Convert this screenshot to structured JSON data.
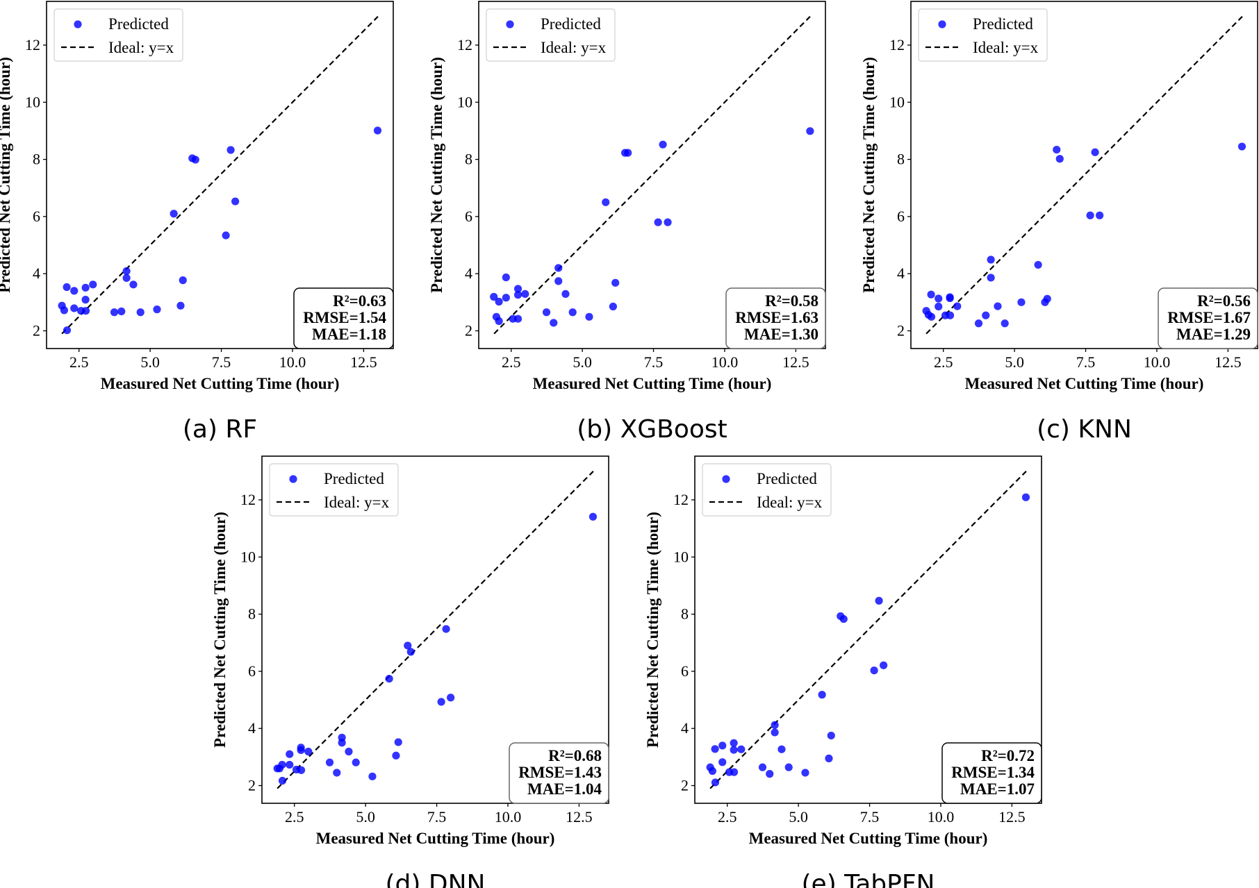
{
  "chart_data": [
    {
      "type": "scatter",
      "caption": "(a) RF",
      "xlabel": "Measured Net Cutting Time (hour)",
      "ylabel": "Predicted Net Cutting Time (hour)",
      "xlim": [
        1.36,
        13.54
      ],
      "ylim": [
        1.38,
        13.53
      ],
      "xticks": [
        2.5,
        5.0,
        7.5,
        10.0,
        12.5
      ],
      "xtick_labels": [
        "2.5",
        "5.0",
        "7.5",
        "10.0",
        "12.5"
      ],
      "yticks": [
        2,
        4,
        6,
        8,
        10,
        12
      ],
      "ytick_labels": [
        "2",
        "4",
        "6",
        "8",
        "10",
        "12"
      ],
      "grid": false,
      "legend_position": "top-left",
      "legend": [
        "Predicted",
        "Ideal: y=x"
      ],
      "series": [
        {
          "name": "Predicted",
          "color": "#0000ff",
          "x": [
            1.9,
            1.98,
            2.07,
            2.08,
            2.33,
            2.33,
            2.57,
            2.74,
            2.73,
            2.73,
            2.99,
            3.74,
            3.99,
            4.17,
            4.17,
            4.41,
            4.66,
            5.24,
            5.83,
            6.07,
            6.15,
            6.48,
            6.59,
            7.66,
            7.83,
            7.99,
            12.99
          ],
          "y": [
            2.88,
            2.72,
            3.53,
            2.02,
            3.4,
            2.79,
            2.7,
            2.7,
            3.51,
            3.09,
            3.62,
            2.65,
            2.68,
            4.09,
            3.85,
            3.62,
            2.65,
            2.75,
            6.1,
            2.88,
            3.77,
            8.04,
            7.99,
            5.34,
            8.33,
            6.53,
            9.01
          ]
        }
      ],
      "ideal_line": {
        "name": "Ideal: y=x",
        "from": 1.9,
        "to": 13.0
      },
      "stats": [
        "R²=0.63",
        "RMSE=1.54",
        "MAE=1.18"
      ]
    },
    {
      "type": "scatter",
      "caption": "(b) XGBoost",
      "xlabel": "Measured Net Cutting Time (hour)",
      "ylabel": "Predicted Net Cutting Time (hour)",
      "xlim": [
        1.36,
        13.54
      ],
      "ylim": [
        1.38,
        13.53
      ],
      "xticks": [
        2.5,
        5.0,
        7.5,
        10.0,
        12.5
      ],
      "xtick_labels": [
        "2.5",
        "5.0",
        "7.5",
        "10.0",
        "12.5"
      ],
      "yticks": [
        2,
        4,
        6,
        8,
        10,
        12
      ],
      "ytick_labels": [
        "2",
        "4",
        "6",
        "8",
        "10",
        "12"
      ],
      "grid": false,
      "legend_position": "top-left",
      "legend": [
        "Predicted",
        "Ideal: y=x"
      ],
      "series": [
        {
          "name": "Predicted",
          "color": "#0000ff",
          "x": [
            1.89,
            2.07,
            1.98,
            2.07,
            2.32,
            2.32,
            2.56,
            2.74,
            2.74,
            2.74,
            2.99,
            3.74,
            3.99,
            4.16,
            4.16,
            4.41,
            4.66,
            5.24,
            5.82,
            6.08,
            6.16,
            6.5,
            6.6,
            7.66,
            7.83,
            8.0,
            13.0
          ],
          "y": [
            3.19,
            3.02,
            2.49,
            2.34,
            3.87,
            3.16,
            2.42,
            2.42,
            3.47,
            3.26,
            3.29,
            2.65,
            2.28,
            4.2,
            3.74,
            3.29,
            2.65,
            2.49,
            6.5,
            2.85,
            3.68,
            8.23,
            8.23,
            5.8,
            8.52,
            5.8,
            8.99
          ]
        }
      ],
      "ideal_line": {
        "name": "Ideal: y=x",
        "from": 1.9,
        "to": 13.0
      },
      "stats": [
        "R²=0.58",
        "RMSE=1.63",
        "MAE=1.30"
      ]
    },
    {
      "type": "scatter",
      "caption": "(c) KNN",
      "xlabel": "Measured Net Cutting Time (hour)",
      "ylabel": "Predicted Net Cutting Time (hour)",
      "xlim": [
        1.36,
        13.54
      ],
      "ylim": [
        1.38,
        13.53
      ],
      "xticks": [
        2.5,
        5.0,
        7.5,
        10.0,
        12.5
      ],
      "xtick_labels": [
        "2.5",
        "5.0",
        "7.5",
        "10.0",
        "12.5"
      ],
      "yticks": [
        2,
        4,
        6,
        8,
        10,
        12
      ],
      "ytick_labels": [
        "2",
        "4",
        "6",
        "8",
        "10",
        "12"
      ],
      "grid": false,
      "legend_position": "top-left",
      "legend": [
        "Predicted",
        "Ideal: y=x"
      ],
      "series": [
        {
          "name": "Predicted",
          "color": "#0000ff",
          "x": [
            1.9,
            1.98,
            2.07,
            2.08,
            2.33,
            2.33,
            2.57,
            2.74,
            2.73,
            2.73,
            2.99,
            3.74,
            3.99,
            4.17,
            4.17,
            4.41,
            4.66,
            5.24,
            5.83,
            6.07,
            6.15,
            6.48,
            6.59,
            7.66,
            7.83,
            7.99,
            12.99
          ],
          "y": [
            2.7,
            2.56,
            3.27,
            2.49,
            3.13,
            2.85,
            2.54,
            2.54,
            3.18,
            3.14,
            2.86,
            2.26,
            2.54,
            4.49,
            3.86,
            2.86,
            2.26,
            3.0,
            4.31,
            3.0,
            3.12,
            8.34,
            8.02,
            6.04,
            8.25,
            6.04,
            8.45
          ]
        }
      ],
      "ideal_line": {
        "name": "Ideal: y=x",
        "from": 1.9,
        "to": 13.0
      },
      "stats": [
        "R²=0.56",
        "RMSE=1.67",
        "MAE=1.29"
      ]
    },
    {
      "type": "scatter",
      "caption": "(d) DNN",
      "xlabel": "Measured Net Cutting Time (hour)",
      "ylabel": "Predicted Net Cutting Time (hour)",
      "xlim": [
        1.36,
        13.54
      ],
      "ylim": [
        1.38,
        13.53
      ],
      "xticks": [
        2.5,
        5.0,
        7.5,
        10.0,
        12.5
      ],
      "xtick_labels": [
        "2.5",
        "5.0",
        "7.5",
        "10.0",
        "12.5"
      ],
      "yticks": [
        2,
        4,
        6,
        8,
        10,
        12
      ],
      "ytick_labels": [
        "2",
        "4",
        "6",
        "8",
        "10",
        "12"
      ],
      "grid": false,
      "legend_position": "top-left",
      "legend": [
        "Predicted",
        "Ideal: y=x"
      ],
      "series": [
        {
          "name": "Predicted",
          "color": "#0000ff",
          "x": [
            1.9,
            1.98,
            2.07,
            2.08,
            2.33,
            2.33,
            2.57,
            2.74,
            2.73,
            2.73,
            2.99,
            3.74,
            3.99,
            4.17,
            4.17,
            4.41,
            4.66,
            5.24,
            5.83,
            6.07,
            6.15,
            6.48,
            6.59,
            7.66,
            7.83,
            7.99,
            12.99
          ],
          "y": [
            2.6,
            2.6,
            2.73,
            2.17,
            3.1,
            2.73,
            2.56,
            2.54,
            3.33,
            3.24,
            3.19,
            2.81,
            2.45,
            3.68,
            3.5,
            3.19,
            2.81,
            2.32,
            5.74,
            3.05,
            3.52,
            6.9,
            6.68,
            4.93,
            7.48,
            5.08,
            11.41
          ]
        }
      ],
      "ideal_line": {
        "name": "Ideal: y=x",
        "from": 1.9,
        "to": 13.0
      },
      "stats": [
        "R²=0.68",
        "RMSE=1.43",
        "MAE=1.04"
      ]
    },
    {
      "type": "scatter",
      "caption": "(e) TabPFN",
      "xlabel": "Measured Net Cutting Time (hour)",
      "ylabel": "Predicted Net Cutting Time (hour)",
      "xlim": [
        1.36,
        13.54
      ],
      "ylim": [
        1.38,
        13.53
      ],
      "xticks": [
        2.5,
        5.0,
        7.5,
        10.0,
        12.5
      ],
      "xtick_labels": [
        "2.5",
        "5.0",
        "7.5",
        "10.0",
        "12.5"
      ],
      "yticks": [
        2,
        4,
        6,
        8,
        10,
        12
      ],
      "ytick_labels": [
        "2",
        "4",
        "6",
        "8",
        "10",
        "12"
      ],
      "grid": false,
      "legend_position": "top-left",
      "legend": [
        "Predicted",
        "Ideal: y=x"
      ],
      "series": [
        {
          "name": "Predicted",
          "color": "#0000ff",
          "x": [
            1.9,
            1.98,
            2.07,
            2.08,
            2.33,
            2.33,
            2.57,
            2.74,
            2.73,
            2.73,
            2.99,
            3.74,
            3.99,
            4.17,
            4.17,
            4.41,
            4.66,
            5.24,
            5.83,
            6.07,
            6.15,
            6.48,
            6.59,
            7.66,
            7.83,
            7.99,
            12.99
          ],
          "y": [
            2.64,
            2.51,
            3.28,
            2.11,
            3.4,
            2.82,
            2.47,
            2.47,
            3.49,
            3.25,
            3.27,
            2.64,
            2.41,
            4.12,
            3.86,
            3.27,
            2.64,
            2.45,
            5.18,
            2.95,
            3.75,
            7.93,
            7.83,
            6.03,
            8.47,
            6.21,
            12.09
          ]
        }
      ],
      "ideal_line": {
        "name": "Ideal: y=x",
        "from": 1.9,
        "to": 13.0
      },
      "stats": [
        "R²=0.72",
        "RMSE=1.34",
        "MAE=1.07"
      ]
    }
  ]
}
